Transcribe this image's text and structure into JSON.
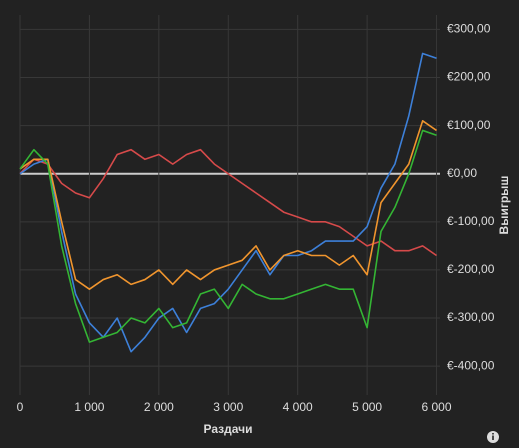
{
  "chart_data": {
    "type": "line",
    "x_label": "Раздачи",
    "y_label": "Выигрыш",
    "x": [
      0,
      200,
      400,
      600,
      800,
      1000,
      1200,
      1400,
      1600,
      1800,
      2000,
      2200,
      2400,
      2600,
      2800,
      3000,
      3200,
      3400,
      3600,
      3800,
      4000,
      4200,
      4400,
      4600,
      4800,
      5000,
      5200,
      5400,
      5600,
      5800,
      6000
    ],
    "series": [
      {
        "color": "#d64a4a",
        "values": [
          0,
          30,
          20,
          -20,
          -40,
          -50,
          -10,
          40,
          50,
          30,
          40,
          20,
          40,
          50,
          20,
          0,
          -20,
          -40,
          -60,
          -80,
          -90,
          -100,
          -100,
          -110,
          -130,
          -150,
          -140,
          -160,
          -160,
          -150,
          -170
        ]
      },
      {
        "color": "#3d80d9",
        "values": [
          0,
          20,
          30,
          -120,
          -250,
          -310,
          -340,
          -300,
          -370,
          -340,
          -300,
          -280,
          -330,
          -280,
          -270,
          -240,
          -200,
          -160,
          -210,
          -170,
          -170,
          -160,
          -140,
          -140,
          -140,
          -110,
          -30,
          20,
          120,
          250,
          240
        ]
      },
      {
        "color": "#f0952e",
        "values": [
          10,
          30,
          30,
          -100,
          -220,
          -240,
          -220,
          -210,
          -230,
          -220,
          -200,
          -230,
          -200,
          -220,
          -200,
          -190,
          -180,
          -150,
          -200,
          -170,
          -160,
          -170,
          -170,
          -190,
          -170,
          -210,
          -60,
          -20,
          20,
          110,
          90
        ]
      },
      {
        "color": "#34b534",
        "values": [
          10,
          50,
          20,
          -150,
          -270,
          -350,
          -340,
          -330,
          -300,
          -310,
          -280,
          -320,
          -310,
          -250,
          -240,
          -280,
          -230,
          -250,
          -260,
          -260,
          -250,
          -240,
          -230,
          -240,
          -240,
          -320,
          -120,
          -70,
          0,
          90,
          80
        ]
      }
    ],
    "xlim": [
      0,
      6050
    ],
    "ylim": [
      -460,
      330
    ],
    "xticks": [
      0,
      {
        "value": 1000,
        "label": "1 000"
      },
      {
        "value": 2000,
        "label": "2 000"
      },
      {
        "value": 3000,
        "label": "3 000"
      },
      {
        "value": 4000,
        "label": "4 000"
      },
      {
        "value": 5000,
        "label": "5 000"
      },
      {
        "value": 6000,
        "label": "6 000"
      }
    ],
    "yticks": [
      {
        "value": 300,
        "label": "€300,00"
      },
      {
        "value": 200,
        "label": "€200,00"
      },
      {
        "value": 100,
        "label": "€100,00"
      },
      {
        "value": 0,
        "label": "€0,00"
      },
      {
        "value": -100,
        "label": "€-100,00"
      },
      {
        "value": -200,
        "label": "€-200,00"
      },
      {
        "value": -300,
        "label": "€-300,00"
      },
      {
        "value": -400,
        "label": "€-400,00"
      }
    ],
    "grid": true
  }
}
